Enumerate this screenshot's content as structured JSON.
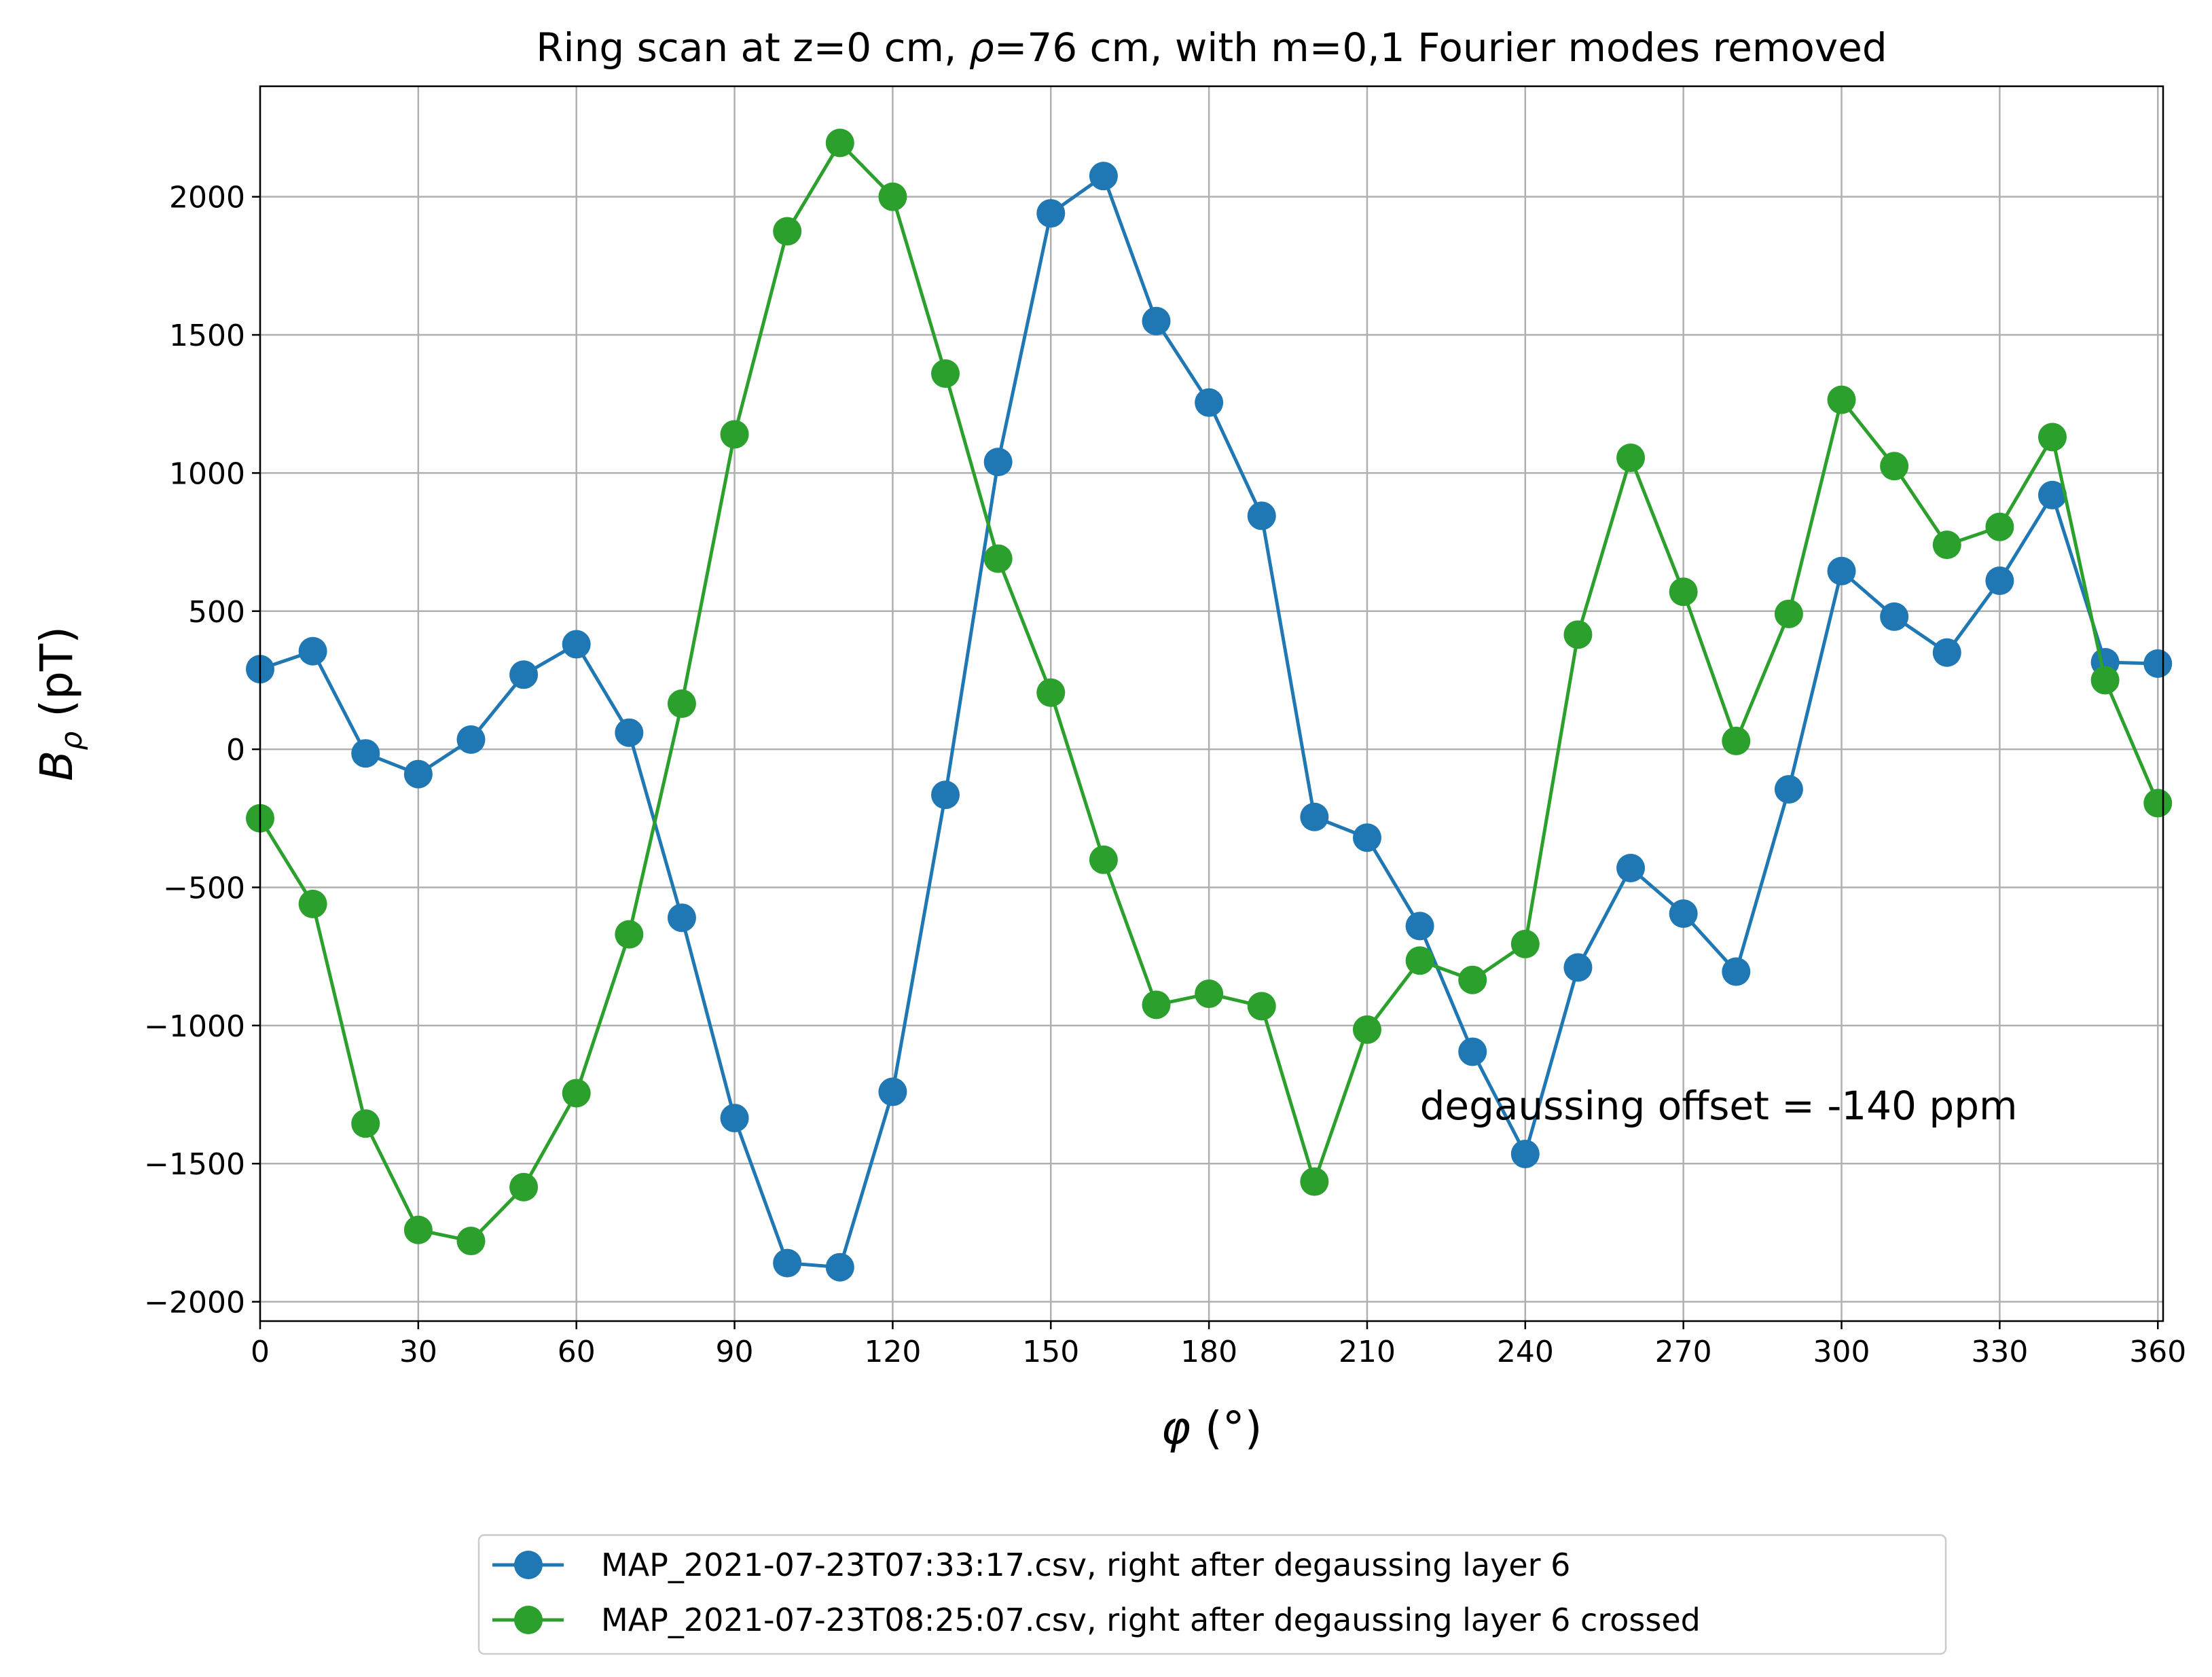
{
  "chart_data": {
    "type": "line",
    "title_pre": "Ring scan at z=0 cm, ",
    "title_rho": "ρ",
    "title_post": "=76 cm, with m=0,1 Fourier modes removed",
    "xlabel_sym": "φ",
    "xlabel_unit": " (°)",
    "ylabel_sym": "B",
    "ylabel_sub": "ρ",
    "ylabel_unit": " (pT)",
    "xlim": [
      0,
      361
    ],
    "ylim": [
      -2070,
      2400
    ],
    "xticks": [
      0,
      30,
      60,
      90,
      120,
      150,
      180,
      210,
      240,
      270,
      300,
      330,
      360
    ],
    "yticks": [
      -2000,
      -1500,
      -1000,
      -500,
      0,
      500,
      1000,
      1500,
      2000
    ],
    "ytick_labels": [
      "−2000",
      "−1500",
      "−1000",
      "−500",
      "0",
      "500",
      "1000",
      "1500",
      "2000"
    ],
    "grid": true,
    "legend_position": "below",
    "annotation": {
      "text": "degaussing offset = -140 ppm",
      "x": 220,
      "y": -1340
    },
    "x": [
      0,
      10,
      20,
      30,
      40,
      50,
      60,
      70,
      80,
      90,
      100,
      110,
      120,
      130,
      140,
      150,
      160,
      170,
      180,
      190,
      200,
      210,
      220,
      230,
      240,
      250,
      260,
      270,
      280,
      290,
      300,
      310,
      320,
      330,
      340,
      350,
      360
    ],
    "series": [
      {
        "name": "MAP_2021-07-23T07:33:17.csv, right after degaussing layer 6",
        "color": "#1f77b4",
        "values": [
          290,
          355,
          -15,
          -90,
          35,
          270,
          380,
          60,
          -610,
          -1335,
          -1860,
          -1875,
          -1240,
          -165,
          1040,
          1940,
          2075,
          1550,
          1255,
          845,
          -245,
          -320,
          -640,
          -1095,
          -1465,
          -790,
          -430,
          -595,
          -805,
          -145,
          645,
          480,
          350,
          610,
          920,
          315,
          310
        ]
      },
      {
        "name": "MAP_2021-07-23T08:25:07.csv, right after degaussing layer 6 crossed",
        "color": "#2ca02c",
        "values": [
          -250,
          -560,
          -1355,
          -1740,
          -1780,
          -1585,
          -1245,
          -670,
          165,
          1140,
          1875,
          2195,
          2000,
          1360,
          690,
          205,
          -400,
          -925,
          -885,
          -930,
          -1565,
          -1015,
          -765,
          -835,
          -705,
          415,
          1055,
          570,
          30,
          490,
          1265,
          1025,
          740,
          805,
          1130,
          250,
          -195
        ]
      }
    ]
  }
}
